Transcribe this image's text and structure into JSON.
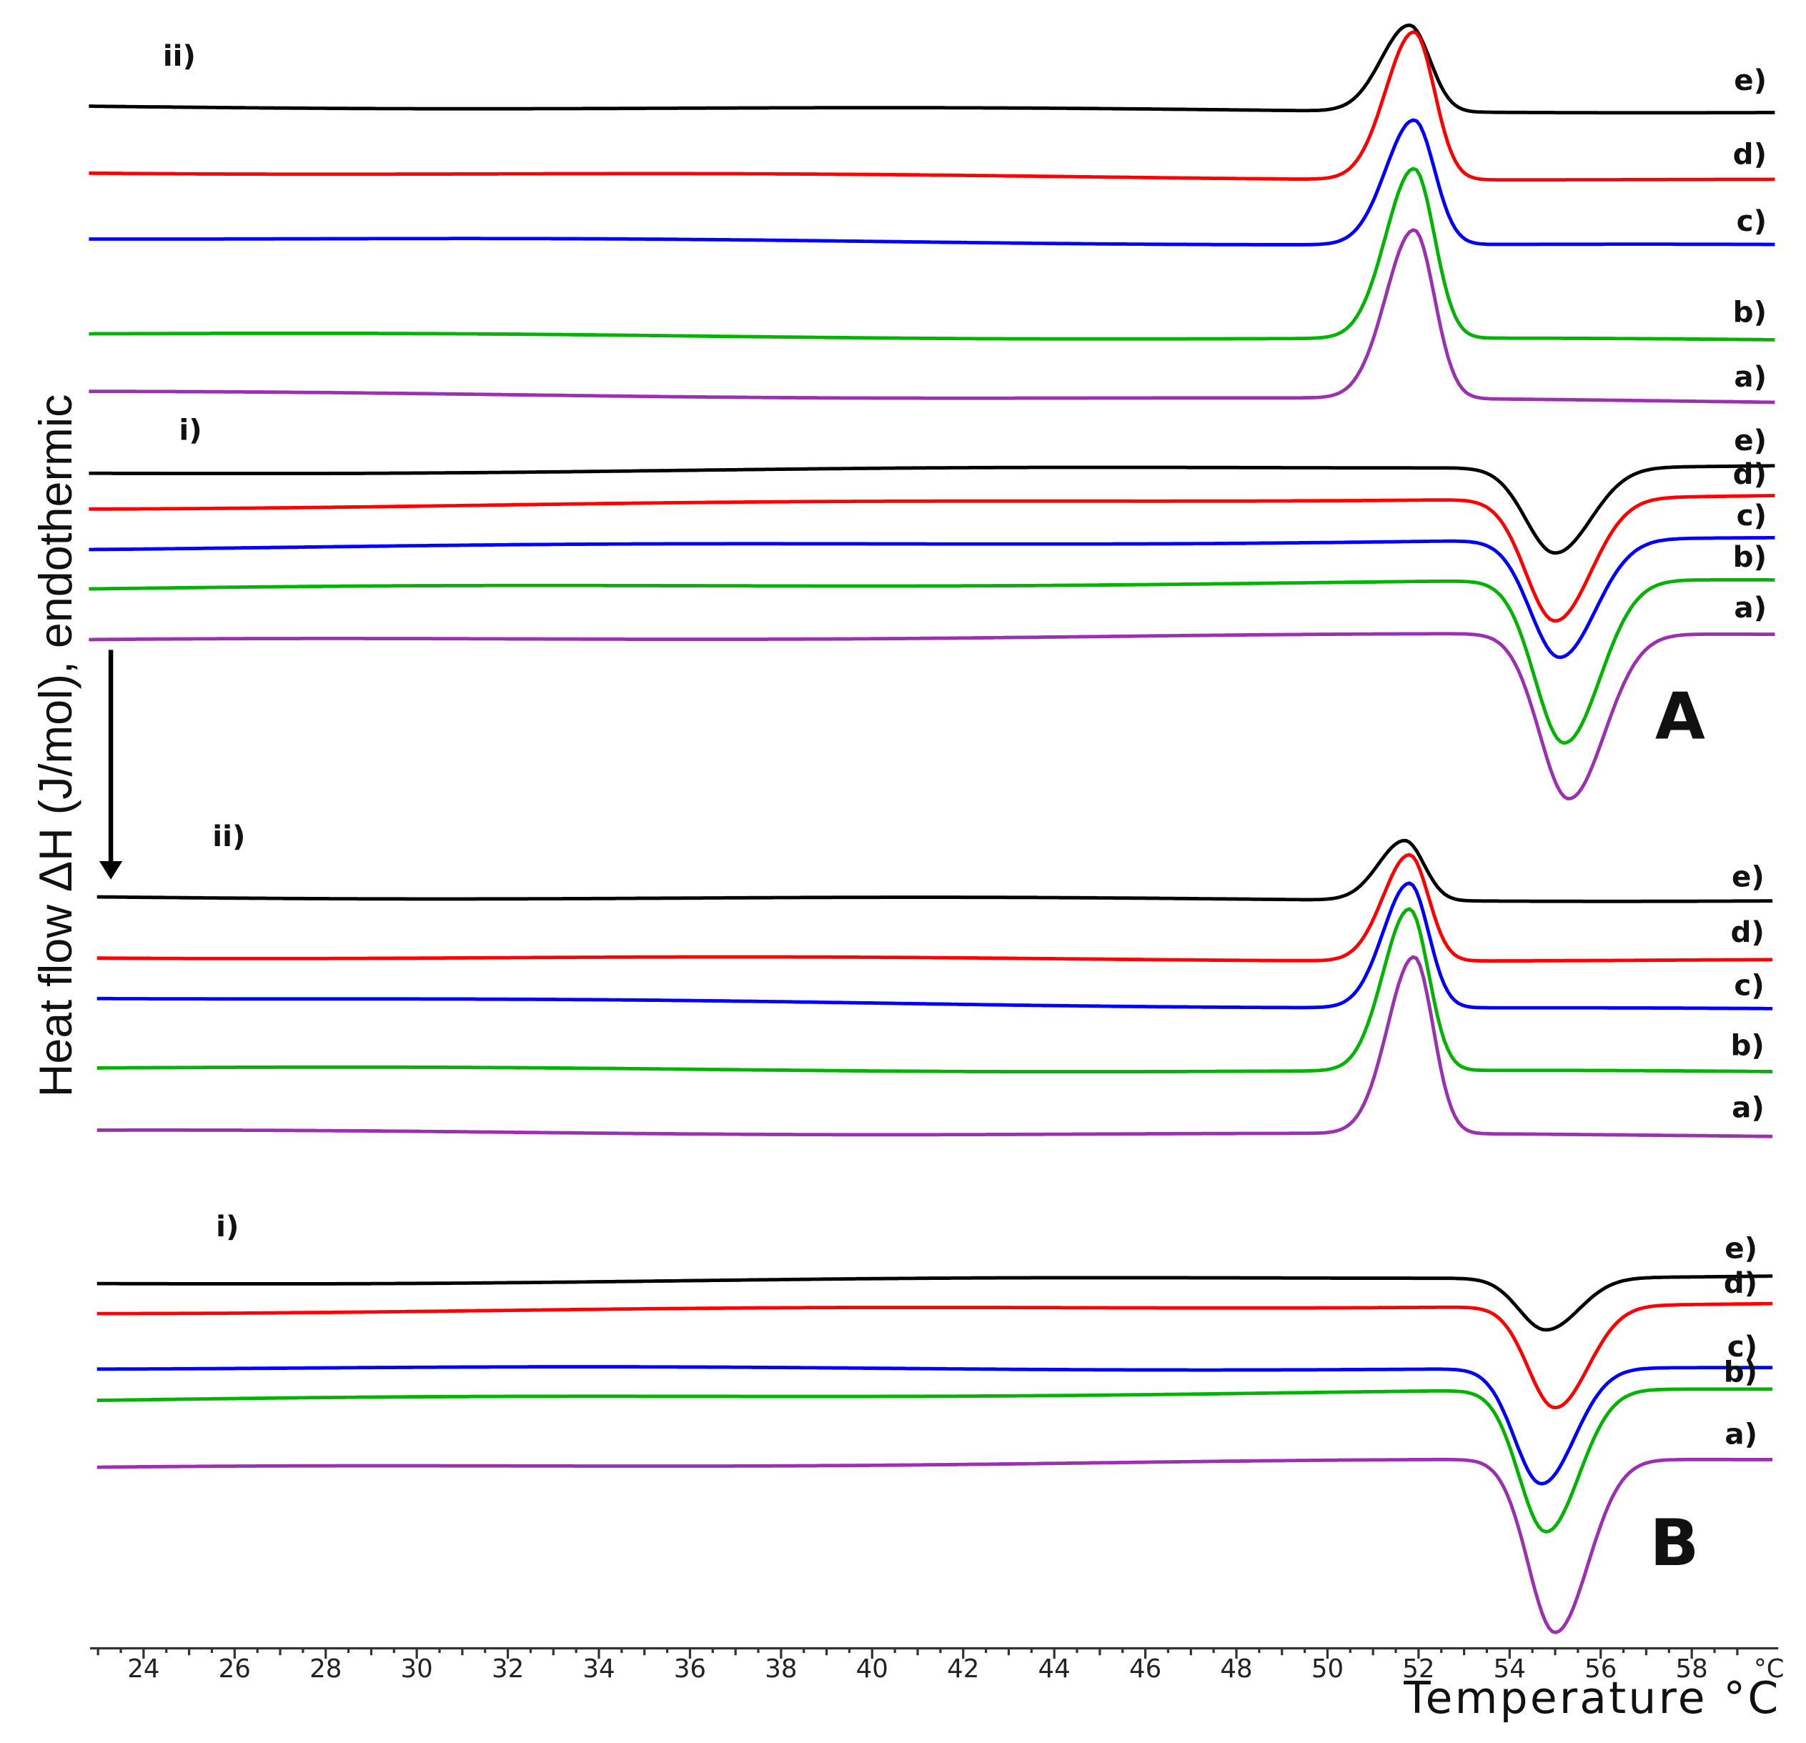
{
  "chart_data": {
    "type": "line",
    "title": "",
    "xlabel": "Temperature °C",
    "ylabel": "Heat flow ΔH (J/mol), endothermic",
    "xlim": [
      22.8,
      59.9
    ],
    "x_ticks": [
      24,
      26,
      28,
      30,
      32,
      34,
      36,
      38,
      40,
      42,
      44,
      46,
      48,
      50,
      52,
      54,
      56,
      58
    ],
    "x_unit_tick_label": "°C",
    "grid": false,
    "legend": "none",
    "panels": [
      {
        "label": "A",
        "sections": [
          {
            "label": "ii)",
            "kind": "exotherm peak",
            "curves": [
              {
                "name": "e)",
                "color": "#000000",
                "peak_temp_c": 51.8,
                "baseline_start": 92.0,
                "baseline_end": 97.0,
                "depth": 75
              },
              {
                "name": "d)",
                "color": "#ff0000",
                "peak_temp_c": 51.9,
                "baseline_start": 149.0,
                "baseline_end": 156.0,
                "depth": 128
              },
              {
                "name": "c)",
                "color": "#0000ff",
                "peak_temp_c": 51.9,
                "baseline_start": 206.0,
                "baseline_end": 213.0,
                "depth": 108
              },
              {
                "name": "b)",
                "color": "#00b400",
                "peak_temp_c": 51.9,
                "baseline_start": 289.0,
                "baseline_end": 295.0,
                "depth": 147
              },
              {
                "name": "a)",
                "color": "#9b30b0",
                "peak_temp_c": 51.9,
                "baseline_start": 340.0,
                "baseline_end": 348.0,
                "depth": 146
              }
            ]
          },
          {
            "label": "i)",
            "kind": "endotherm peak",
            "curves": [
              {
                "name": "e)",
                "color": "#000000",
                "peak_temp_c": 55.0,
                "baseline_start": 410.0,
                "baseline_end": 403.0,
                "depth": 74
              },
              {
                "name": "d)",
                "color": "#ff0000",
                "peak_temp_c": 55.0,
                "baseline_start": 440.0,
                "baseline_end": 430.0,
                "depth": 106
              },
              {
                "name": "c)",
                "color": "#0000ff",
                "peak_temp_c": 55.1,
                "baseline_start": 475.0,
                "baseline_end": 467.0,
                "depth": 102
              },
              {
                "name": "b)",
                "color": "#00b400",
                "peak_temp_c": 55.2,
                "baseline_start": 510.0,
                "baseline_end": 503.0,
                "depth": 141
              },
              {
                "name": "a)",
                "color": "#9b30b0",
                "peak_temp_c": 55.3,
                "baseline_start": 555.0,
                "baseline_end": 549.0,
                "depth": 143
              }
            ]
          }
        ]
      },
      {
        "label": "B",
        "sections": [
          {
            "label": "ii)",
            "kind": "exotherm peak",
            "curves": [
              {
                "name": "e)",
                "color": "#000000",
                "peak_temp_c": 51.7,
                "baseline_start": 777.0,
                "baseline_end": 780.0,
                "depth": 52
              },
              {
                "name": "d)",
                "color": "#ff0000",
                "peak_temp_c": 51.8,
                "baseline_start": 829.0,
                "baseline_end": 832.0,
                "depth": 92
              },
              {
                "name": "c)",
                "color": "#0000ff",
                "peak_temp_c": 51.8,
                "baseline_start": 864.0,
                "baseline_end": 875.0,
                "depth": 108
              },
              {
                "name": "b)",
                "color": "#00b400",
                "peak_temp_c": 51.8,
                "baseline_start": 925.0,
                "baseline_end": 929.0,
                "depth": 140
              },
              {
                "name": "a)",
                "color": "#9b30b0",
                "peak_temp_c": 51.9,
                "baseline_start": 980.0,
                "baseline_end": 984.0,
                "depth": 153
              }
            ]
          },
          {
            "label": "i)",
            "kind": "endotherm peak",
            "curves": [
              {
                "name": "e)",
                "color": "#000000",
                "peak_temp_c": 54.8,
                "baseline_start": 1112.0,
                "baseline_end": 1105.0,
                "depth": 45
              },
              {
                "name": "d)",
                "color": "#ff0000",
                "peak_temp_c": 55.0,
                "baseline_start": 1137.0,
                "baseline_end": 1130.0,
                "depth": 88
              },
              {
                "name": "c)",
                "color": "#0000ff",
                "peak_temp_c": 54.7,
                "baseline_start": 1185.0,
                "baseline_end": 1186.0,
                "depth": 100
              },
              {
                "name": "b)",
                "color": "#00b400",
                "peak_temp_c": 54.8,
                "baseline_start": 1213.0,
                "baseline_end": 1204.0,
                "depth": 123
              },
              {
                "name": "a)",
                "color": "#9b30b0",
                "peak_temp_c": 55.0,
                "baseline_start": 1272.0,
                "baseline_end": 1264.0,
                "depth": 150
              }
            ]
          }
        ]
      }
    ]
  }
}
